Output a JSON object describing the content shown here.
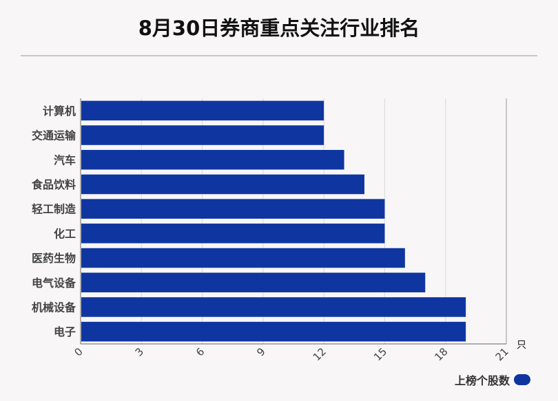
{
  "title": "8月30日券商重点关注行业排名",
  "chart_data": {
    "type": "bar",
    "orientation": "horizontal",
    "categories": [
      "计算机",
      "交通运输",
      "汽车",
      "食品饮料",
      "轻工制造",
      "化工",
      "医药生物",
      "电气设备",
      "机械设备",
      "电子"
    ],
    "series": [
      {
        "name": "上榜个股数",
        "values": [
          12,
          12,
          13,
          14,
          15,
          15,
          16,
          17,
          19,
          19
        ]
      }
    ],
    "xlim": [
      0,
      21
    ],
    "xticks": [
      0,
      3,
      6,
      9,
      12,
      15,
      18,
      21
    ],
    "unit_label": "只",
    "grid": true,
    "legend_position": "bottom-right",
    "bar_color": "#0f36a0"
  }
}
